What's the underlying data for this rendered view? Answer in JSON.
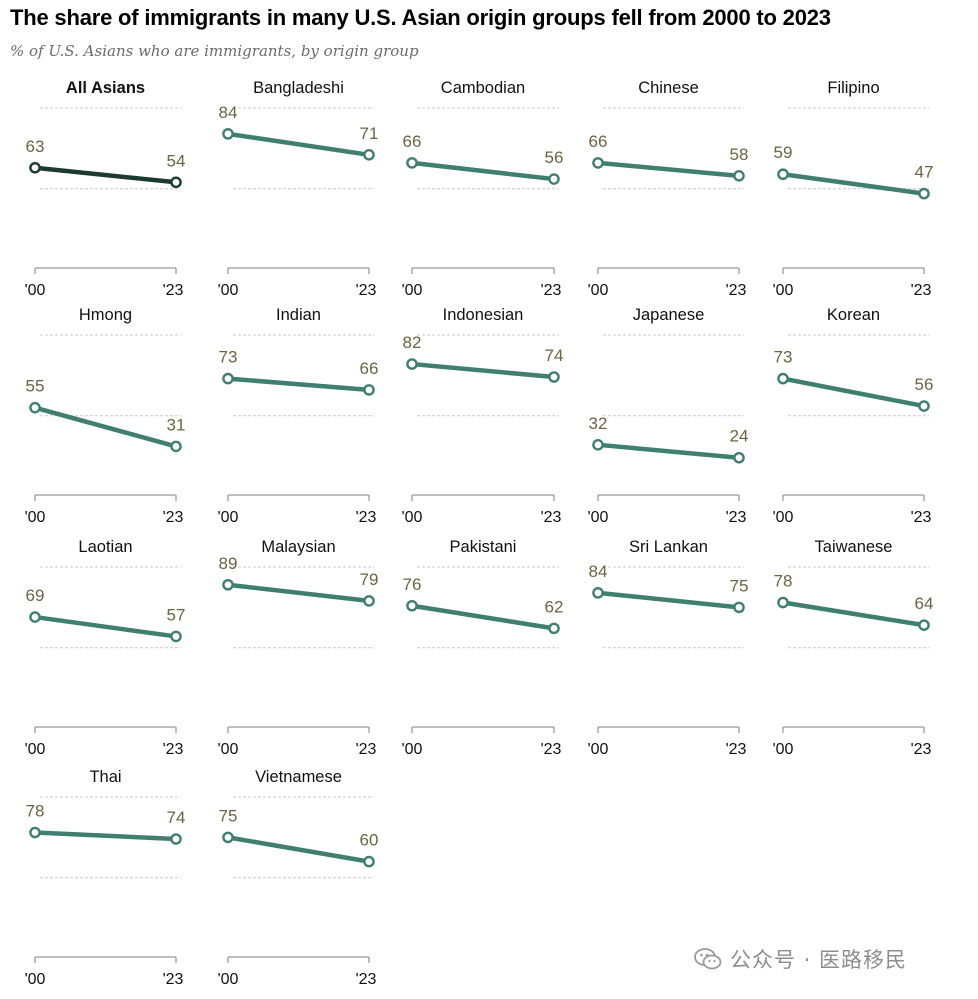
{
  "title": "The share of immigrants in many U.S. Asian origin groups fell from 2000 to 2023",
  "subtitle": "% of U.S. Asians who are immigrants, by origin group",
  "watermark": {
    "text": "公众号 · 医路移民",
    "icon": "wechat-icon"
  },
  "colors": {
    "highlight": "#1c3a30",
    "series": "#3f7f6f",
    "label": "#6b6440",
    "grid": "#c9c9c9",
    "axis": "#999999"
  },
  "chart_data": {
    "type": "line",
    "layout": "small-multiples",
    "title": "The share of immigrants in many U.S. Asian origin groups fell from 2000 to 2023",
    "subtitle": "% of U.S. Asians who are immigrants, by origin group",
    "x": [
      "'00",
      "'23"
    ],
    "ylim": [
      0,
      100
    ],
    "gridlines": [
      50,
      100
    ],
    "series": [
      {
        "name": "All Asians",
        "values": [
          63,
          54
        ],
        "highlight": true
      },
      {
        "name": "Bangladeshi",
        "values": [
          84,
          71
        ]
      },
      {
        "name": "Cambodian",
        "values": [
          66,
          56
        ]
      },
      {
        "name": "Chinese",
        "values": [
          66,
          58
        ]
      },
      {
        "name": "Filipino",
        "values": [
          59,
          47
        ]
      },
      {
        "name": "Hmong",
        "values": [
          55,
          31
        ]
      },
      {
        "name": "Indian",
        "values": [
          73,
          66
        ]
      },
      {
        "name": "Indonesian",
        "values": [
          82,
          74
        ]
      },
      {
        "name": "Japanese",
        "values": [
          32,
          24
        ]
      },
      {
        "name": "Korean",
        "values": [
          73,
          56
        ]
      },
      {
        "name": "Laotian",
        "values": [
          69,
          57
        ]
      },
      {
        "name": "Malaysian",
        "values": [
          89,
          79
        ]
      },
      {
        "name": "Pakistani",
        "values": [
          76,
          62
        ]
      },
      {
        "name": "Sri Lankan",
        "values": [
          84,
          75
        ]
      },
      {
        "name": "Taiwanese",
        "values": [
          78,
          64
        ]
      },
      {
        "name": "Thai",
        "values": [
          78,
          74
        ]
      },
      {
        "name": "Vietnamese",
        "values": [
          75,
          60
        ]
      }
    ]
  }
}
